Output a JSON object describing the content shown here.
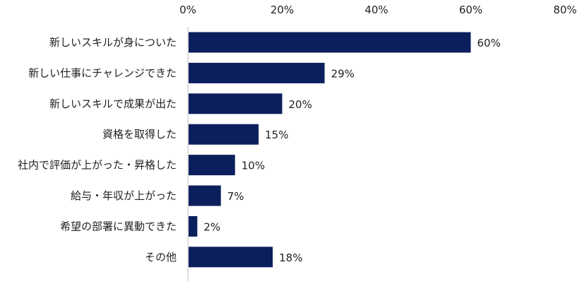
{
  "chart_data": {
    "type": "bar",
    "orientation": "horizontal",
    "categories": [
      "新しいスキルが身についた",
      "新しい仕事にチャレンジできた",
      "新しいスキルで成果が出た",
      "資格を取得した",
      "社内で評価が上がった・昇格した",
      "給与・年収が上がった",
      "希望の部署に異動できた",
      "その他"
    ],
    "values": [
      60,
      29,
      20,
      15,
      10,
      7,
      2,
      18
    ],
    "value_labels": [
      "60%",
      "29%",
      "20%",
      "15%",
      "10%",
      "7%",
      "2%",
      "18%"
    ],
    "x_ticks": [
      0,
      20,
      40,
      60,
      80
    ],
    "x_tick_labels": [
      "0%",
      "20%",
      "40%",
      "60%",
      "80%"
    ],
    "xlim": [
      0,
      80
    ],
    "axis_position": "top",
    "grid": false,
    "legend": "none",
    "title": "",
    "xlabel": "",
    "ylabel": "",
    "bar_color": "#0b1f5c",
    "axis_color": "#bfbfbf"
  }
}
